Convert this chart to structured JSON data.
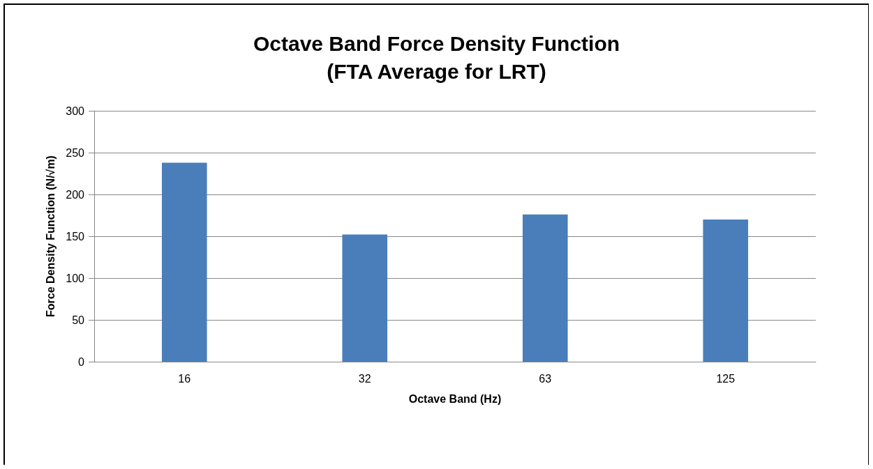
{
  "chart_data": {
    "type": "bar",
    "title": "Octave Band Force Density Function\n(FTA Average for LRT)",
    "xlabel": "Octave Band (Hz)",
    "ylabel": "Force Density Function (N/√m)",
    "categories": [
      "16",
      "32",
      "63",
      "125"
    ],
    "values": [
      238,
      152,
      176,
      170
    ],
    "color": "#4a7ebb",
    "ylim": [
      0,
      300
    ],
    "yticks": [
      0,
      50,
      100,
      150,
      200,
      250,
      300
    ],
    "grid": "y"
  }
}
